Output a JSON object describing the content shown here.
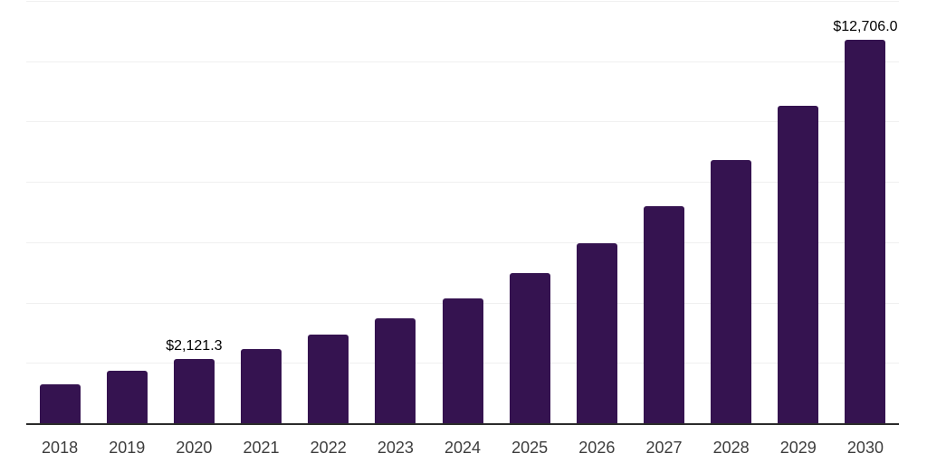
{
  "chart_data": {
    "type": "bar",
    "title": "",
    "xlabel": "",
    "ylabel": "",
    "categories": [
      "2018",
      "2019",
      "2020",
      "2021",
      "2022",
      "2023",
      "2024",
      "2025",
      "2026",
      "2027",
      "2028",
      "2029",
      "2030"
    ],
    "values": [
      1280,
      1725,
      2121.3,
      2445,
      2925,
      3470,
      4150,
      4970,
      5970,
      7210,
      8710,
      10510,
      12706
    ],
    "data_labels": [
      "",
      "",
      "$2,121.3",
      "",
      "",
      "",
      "",
      "",
      "",
      "",
      "",
      "",
      "$12,706.0"
    ],
    "ylim": [
      0,
      14000
    ],
    "gridline_step": 2000,
    "grid": true,
    "legend": false,
    "colors": {
      "bar": "#351350",
      "axis_line": "#2b2b2b",
      "gridline": "#f0f0f0",
      "data_label": "#000000",
      "tick_label": "#3d3d3d",
      "background": "#ffffff"
    }
  }
}
